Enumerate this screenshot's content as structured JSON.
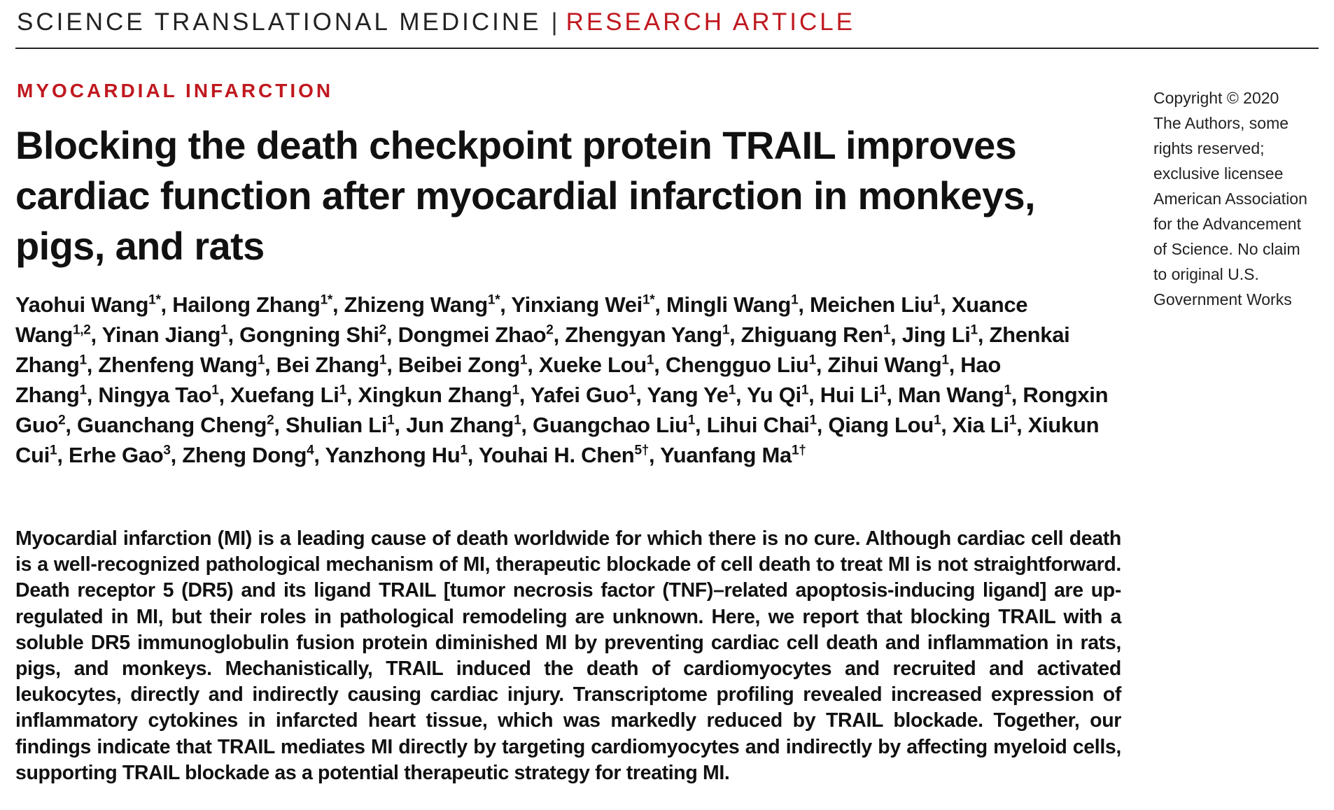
{
  "header": {
    "journal_name": "SCIENCE TRANSLATIONAL MEDICINE",
    "separator": "|",
    "article_type": "RESEARCH ARTICLE"
  },
  "section_label": "MYOCARDIAL INFARCTION",
  "title": "Blocking the death checkpoint protein TRAIL improves cardiac function after myocardial infarction in monkeys, pigs, and rats",
  "copyright_lines": [
    "Copyright © 2020",
    "The Authors, some",
    "rights reserved;",
    "exclusive licensee",
    "American Association",
    "for the Advancement",
    "of Science. No claim",
    "to original U.S.",
    "Government Works"
  ],
  "authors": [
    {
      "name": "Yaohui Wang",
      "aff": "1*"
    },
    {
      "name": "Hailong Zhang",
      "aff": "1*"
    },
    {
      "name": "Zhizeng Wang",
      "aff": "1*"
    },
    {
      "name": "Yinxiang Wei",
      "aff": "1*"
    },
    {
      "name": "Mingli Wang",
      "aff": "1"
    },
    {
      "name": "Meichen Liu",
      "aff": "1"
    },
    {
      "name": "Xuance Wang",
      "aff": "1,2"
    },
    {
      "name": "Yinan Jiang",
      "aff": "1"
    },
    {
      "name": "Gongning Shi",
      "aff": "2"
    },
    {
      "name": "Dongmei Zhao",
      "aff": "2"
    },
    {
      "name": "Zhengyan Yang",
      "aff": "1"
    },
    {
      "name": "Zhiguang Ren",
      "aff": "1"
    },
    {
      "name": "Jing Li",
      "aff": "1"
    },
    {
      "name": "Zhenkai Zhang",
      "aff": "1"
    },
    {
      "name": "Zhenfeng Wang",
      "aff": "1"
    },
    {
      "name": "Bei Zhang",
      "aff": "1"
    },
    {
      "name": "Beibei Zong",
      "aff": "1"
    },
    {
      "name": "Xueke Lou",
      "aff": "1"
    },
    {
      "name": "Chengguo Liu",
      "aff": "1"
    },
    {
      "name": "Zihui Wang",
      "aff": "1"
    },
    {
      "name": "Hao Zhang",
      "aff": "1"
    },
    {
      "name": "Ningya Tao",
      "aff": "1"
    },
    {
      "name": "Xuefang Li",
      "aff": "1"
    },
    {
      "name": "Xingkun Zhang",
      "aff": "1"
    },
    {
      "name": "Yafei Guo",
      "aff": "1"
    },
    {
      "name": "Yang Ye",
      "aff": "1"
    },
    {
      "name": "Yu Qi",
      "aff": "1"
    },
    {
      "name": "Hui Li",
      "aff": "1"
    },
    {
      "name": "Man Wang",
      "aff": "1"
    },
    {
      "name": "Rongxin Guo",
      "aff": "2"
    },
    {
      "name": "Guanchang Cheng",
      "aff": "2"
    },
    {
      "name": "Shulian Li",
      "aff": "1"
    },
    {
      "name": "Jun Zhang",
      "aff": "1"
    },
    {
      "name": "Guangchao Liu",
      "aff": "1"
    },
    {
      "name": "Lihui Chai",
      "aff": "1"
    },
    {
      "name": "Qiang Lou",
      "aff": "1"
    },
    {
      "name": "Xia Li",
      "aff": "1"
    },
    {
      "name": "Xiukun Cui",
      "aff": "1"
    },
    {
      "name": "Erhe Gao",
      "aff": "3"
    },
    {
      "name": "Zheng Dong",
      "aff": "4"
    },
    {
      "name": "Yanzhong Hu",
      "aff": "1"
    },
    {
      "name": "Youhai H. Chen",
      "aff": "5†"
    },
    {
      "name": "Yuanfang Ma",
      "aff": "1†"
    }
  ],
  "abstract": "Myocardial infarction (MI) is a leading cause of death worldwide for which there is no cure. Although cardiac cell death is a well-recognized pathological mechanism of MI, therapeutic blockade of cell death to treat MI is not straightforward. Death receptor 5 (DR5) and its ligand TRAIL [tumor necrosis factor (TNF)–related apoptosis-inducing ligand] are up-regulated in MI, but their roles in pathological remodeling are unknown. Here, we report that blocking TRAIL with a soluble DR5 immunoglobulin fusion protein diminished MI by preventing cardiac cell death and inflammation in rats, pigs, and monkeys. Mechanistically, TRAIL induced the death of cardiomyocytes and recruited and activated leukocytes, directly and indirectly causing cardiac injury. Transcriptome profiling revealed increased expression of inflammatory cytokines in infarcted heart tissue, which was markedly reduced by TRAIL blockade. Together, our findings indicate that TRAIL mediates MI directly by targeting cardiomyocytes and indirectly by affecting myeloid cells, supporting TRAIL blockade as a potential therapeutic strategy for treating MI.",
  "colors": {
    "accent_red": "#c0181f",
    "text": "#111111"
  }
}
